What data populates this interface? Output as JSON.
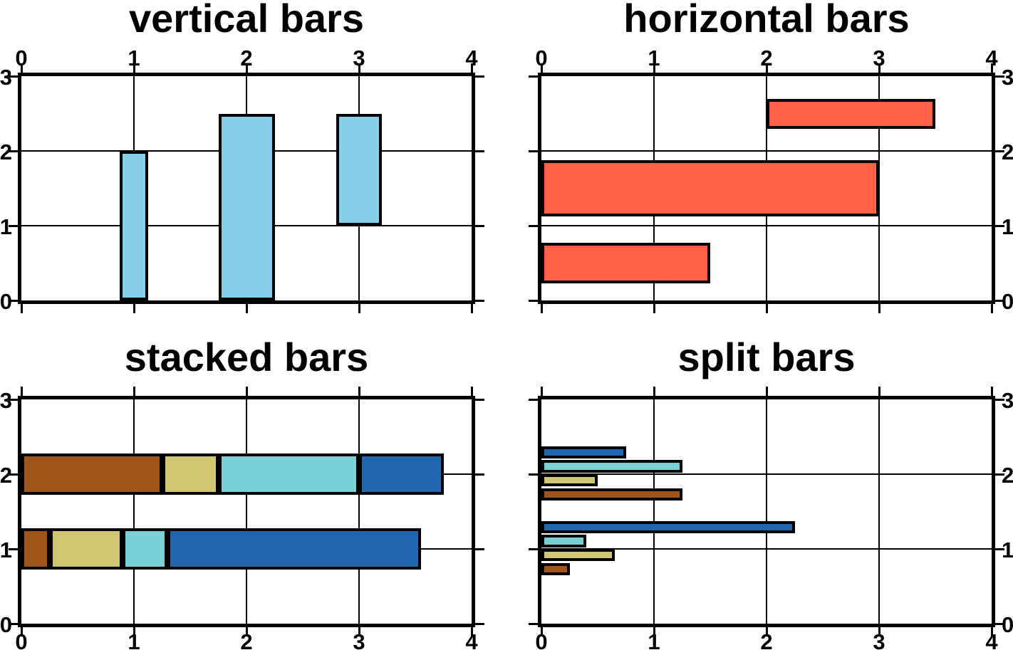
{
  "figure": {
    "background": "#ffffff",
    "frame_color": "#000000",
    "bar_outline_color": "#000000"
  },
  "chart_data": [
    {
      "type": "bar",
      "panel": "top-left",
      "title": "vertical bars",
      "orientation": "vertical",
      "xlim": [
        0,
        4
      ],
      "ylim": [
        0,
        3
      ],
      "xticks": [
        0,
        1,
        2,
        3,
        4
      ],
      "yticks": [
        0,
        1,
        2,
        3
      ],
      "x_label_side": "top",
      "y_label_side": "left",
      "grid": true,
      "bar_color": "#87CEEB",
      "bars": [
        {
          "x": 1,
          "width": 0.25,
          "base": 0,
          "top": 2.0
        },
        {
          "x": 2,
          "width": 0.5,
          "base": 0,
          "top": 2.5
        },
        {
          "x": 3,
          "width": 0.4,
          "base": 1,
          "top": 2.5
        }
      ]
    },
    {
      "type": "bar",
      "panel": "top-right",
      "title": "horizontal bars",
      "orientation": "horizontal",
      "xlim": [
        0,
        4
      ],
      "ylim": [
        0,
        3
      ],
      "xticks": [
        0,
        1,
        2,
        3,
        4
      ],
      "yticks": [
        0,
        1,
        2,
        3
      ],
      "x_label_side": "top",
      "y_label_side": "right",
      "grid": true,
      "bar_color": "#FF6347",
      "bars": [
        {
          "y": 2.5,
          "height": 0.4,
          "base": 2,
          "top": 3.5
        },
        {
          "y": 1.5,
          "height": 0.75,
          "base": 0,
          "top": 3.0
        },
        {
          "y": 0.5,
          "height": 0.55,
          "base": 0,
          "top": 1.5
        }
      ]
    },
    {
      "type": "stacked-bar",
      "panel": "bottom-left",
      "title": "stacked bars",
      "orientation": "horizontal",
      "xlim": [
        0,
        4
      ],
      "ylim": [
        0,
        3
      ],
      "xticks": [
        0,
        1,
        2,
        3,
        4
      ],
      "yticks": [
        0,
        1,
        2,
        3
      ],
      "x_label_side": "bottom",
      "y_label_side": "left",
      "grid": true,
      "bar_height": 0.55,
      "series_colors": {
        "brown": "#A0561B",
        "khaki": "#D0C672",
        "turquoise": "#79D1D6",
        "blue": "#2267AE"
      },
      "bars": [
        {
          "y": 2,
          "segments": [
            {
              "color": "brown",
              "value": 1.25
            },
            {
              "color": "khaki",
              "value": 0.5
            },
            {
              "color": "turquoise",
              "value": 1.25
            },
            {
              "color": "blue",
              "value": 0.75
            }
          ]
        },
        {
          "y": 1,
          "segments": [
            {
              "color": "brown",
              "value": 0.25
            },
            {
              "color": "khaki",
              "value": 0.65
            },
            {
              "color": "turquoise",
              "value": 0.4
            },
            {
              "color": "blue",
              "value": 2.25
            }
          ]
        }
      ]
    },
    {
      "type": "split-bar",
      "panel": "bottom-right",
      "title": "split bars",
      "orientation": "horizontal",
      "xlim": [
        0,
        4
      ],
      "ylim": [
        0,
        3
      ],
      "xticks": [
        0,
        1,
        2,
        3,
        4
      ],
      "yticks": [
        0,
        1,
        2,
        3
      ],
      "x_label_side": "bottom",
      "y_label_side": "right",
      "grid": true,
      "group_height": 0.75,
      "subbar_pitch": 0.1875,
      "series_colors": {
        "brown": "#A0561B",
        "khaki": "#D0C672",
        "turquoise": "#79D1D6",
        "blue": "#2267AE"
      },
      "bars": [
        {
          "y": 2,
          "subbars": [
            {
              "color": "blue",
              "value": 0.75
            },
            {
              "color": "turquoise",
              "value": 1.25
            },
            {
              "color": "khaki",
              "value": 0.5
            },
            {
              "color": "brown",
              "value": 1.25
            }
          ]
        },
        {
          "y": 1,
          "subbars": [
            {
              "color": "blue",
              "value": 2.25
            },
            {
              "color": "turquoise",
              "value": 0.4
            },
            {
              "color": "khaki",
              "value": 0.65
            },
            {
              "color": "brown",
              "value": 0.25
            }
          ]
        }
      ]
    }
  ]
}
